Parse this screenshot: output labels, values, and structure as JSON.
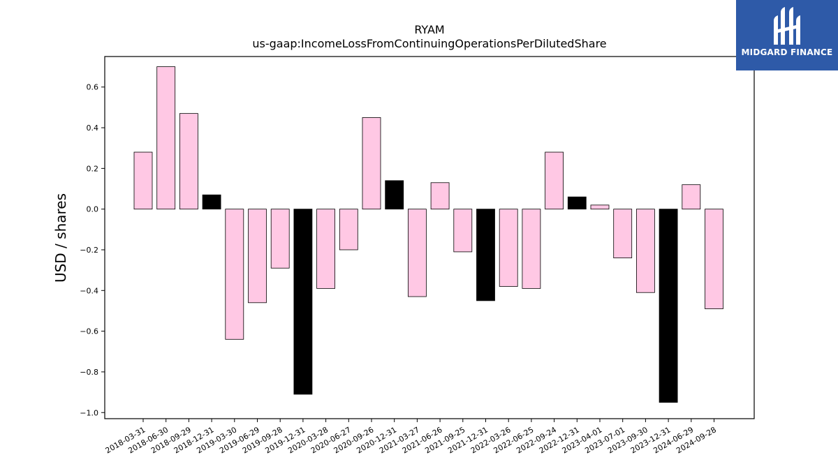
{
  "chart_data": {
    "type": "bar",
    "title": "RYAM",
    "subtitle": "us-gaap:IncomeLossFromContinuingOperationsPerDilutedShare",
    "ylabel": "USD / shares",
    "xlabel": "",
    "ylim": [
      -1.03,
      0.75
    ],
    "yticks": [
      -1.0,
      -0.8,
      -0.6,
      -0.4,
      -0.2,
      0.0,
      0.2,
      0.4,
      0.6
    ],
    "ytick_labels": [
      "−1.0",
      "−0.8",
      "−0.6",
      "−0.4",
      "−0.2",
      "0.0",
      "0.2",
      "0.4",
      "0.6"
    ],
    "grid": false,
    "colors": {
      "quarterly": "#ffc8e4",
      "annual": "#000000",
      "edge": "#000000"
    },
    "categories": [
      "2018-03-31",
      "2018-06-30",
      "2018-09-29",
      "2018-12-31",
      "2019-03-30",
      "2019-06-29",
      "2019-09-28",
      "2019-12-31",
      "2020-03-28",
      "2020-06-27",
      "2020-09-26",
      "2020-12-31",
      "2021-03-27",
      "2021-06-26",
      "2021-09-25",
      "2021-12-31",
      "2022-03-26",
      "2022-06-25",
      "2022-09-24",
      "2022-12-31",
      "2023-04-01",
      "2023-07-01",
      "2023-09-30",
      "2023-12-31",
      "2024-06-29",
      "2024-09-28"
    ],
    "values": [
      0.28,
      0.7,
      0.47,
      0.07,
      -0.64,
      -0.46,
      -0.29,
      -0.91,
      -0.39,
      -0.2,
      0.45,
      0.14,
      -0.43,
      0.13,
      -0.21,
      -0.45,
      -0.38,
      -0.39,
      0.28,
      0.06,
      0.02,
      -0.24,
      -0.41,
      -0.95,
      0.12,
      -0.49
    ],
    "annual": [
      false,
      false,
      false,
      true,
      false,
      false,
      false,
      true,
      false,
      false,
      false,
      true,
      false,
      false,
      false,
      true,
      false,
      false,
      false,
      true,
      false,
      false,
      false,
      true,
      false,
      false
    ]
  },
  "logo": {
    "text": "MIDGARD FINANCE",
    "icon": "midgard-logo-icon",
    "background": "#2e5aa8"
  }
}
